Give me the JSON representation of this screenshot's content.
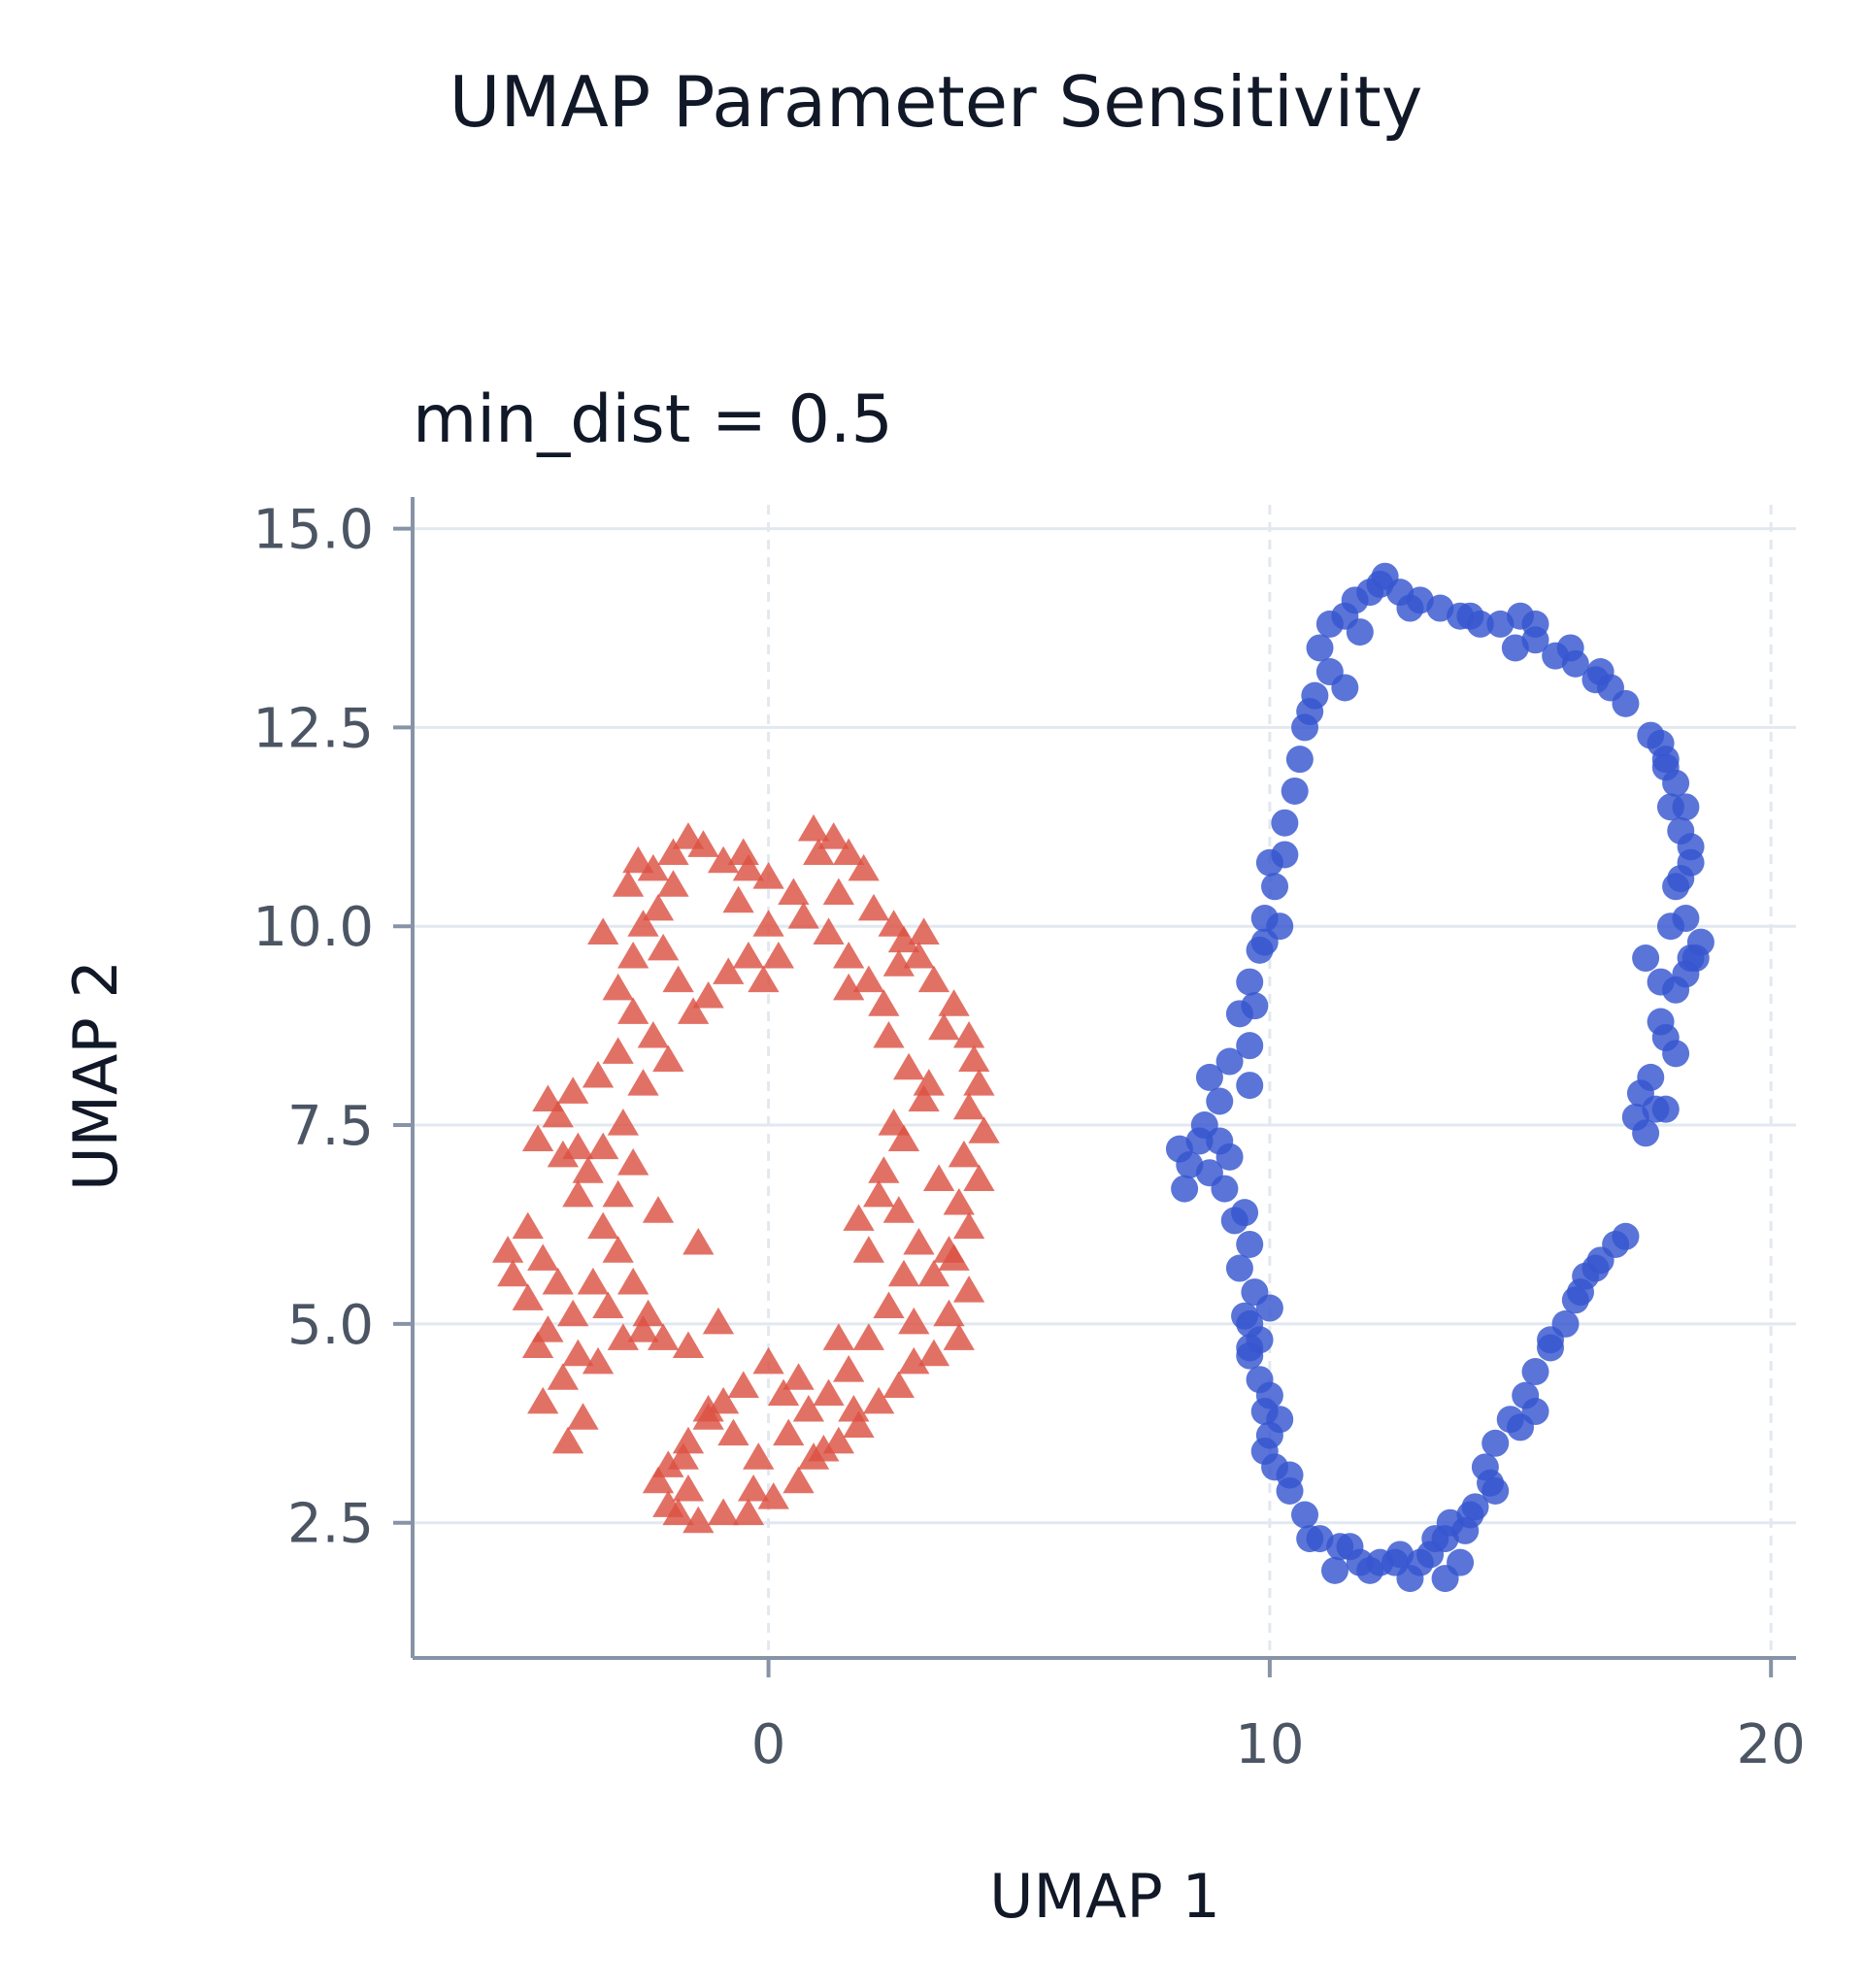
{
  "title": "UMAP Parameter Sensitivity",
  "colors": {
    "series_a": "#dc5243",
    "series_b": "#3656d0"
  },
  "chart_data": {
    "type": "scatter",
    "subtitle": "min_dist = 0.5",
    "xlabel": "UMAP 1",
    "ylabel": "UMAP 2",
    "xlim": [
      -7.1,
      20.5
    ],
    "ylim": [
      0.8,
      15.3
    ],
    "x_ticks": [
      0,
      10,
      20
    ],
    "x_tick_labels": [
      "0",
      "10",
      "20"
    ],
    "y_ticks": [
      2.5,
      5.0,
      7.5,
      10.0,
      12.5,
      15.0
    ],
    "y_tick_labels": [
      "2.5",
      "5.0",
      "7.5",
      "10.0",
      "12.5",
      "15.0"
    ],
    "grid": true,
    "series": [
      {
        "marker": "triangle",
        "color": "#dc5243",
        "points": [
          [
            -1.6,
            11.1
          ],
          [
            -1.3,
            11.0
          ],
          [
            -1.9,
            10.9
          ],
          [
            -2.3,
            10.7
          ],
          [
            -2.6,
            10.8
          ],
          [
            -2.8,
            10.5
          ],
          [
            -0.9,
            10.8
          ],
          [
            -0.4,
            10.7
          ],
          [
            0.0,
            10.6
          ],
          [
            0.5,
            10.4
          ],
          [
            1.0,
            10.9
          ],
          [
            1.3,
            11.1
          ],
          [
            1.6,
            10.9
          ],
          [
            1.9,
            10.7
          ],
          [
            1.4,
            10.4
          ],
          [
            2.1,
            10.2
          ],
          [
            2.5,
            10.0
          ],
          [
            2.7,
            9.8
          ],
          [
            3.0,
            9.6
          ],
          [
            3.3,
            9.3
          ],
          [
            3.7,
            9.0
          ],
          [
            4.0,
            8.6
          ],
          [
            4.1,
            8.3
          ],
          [
            4.2,
            8.0
          ],
          [
            4.0,
            7.7
          ],
          [
            4.3,
            7.4
          ],
          [
            3.9,
            7.1
          ],
          [
            4.2,
            6.8
          ],
          [
            3.8,
            6.5
          ],
          [
            4.0,
            6.2
          ],
          [
            3.7,
            5.8
          ],
          [
            4.0,
            5.4
          ],
          [
            3.6,
            5.1
          ],
          [
            3.8,
            4.8
          ],
          [
            3.3,
            4.6
          ],
          [
            2.9,
            4.5
          ],
          [
            2.6,
            4.2
          ],
          [
            2.2,
            4.0
          ],
          [
            1.8,
            3.7
          ],
          [
            1.4,
            3.5
          ],
          [
            0.9,
            3.3
          ],
          [
            0.6,
            3.0
          ],
          [
            0.1,
            2.8
          ],
          [
            -0.4,
            2.6
          ],
          [
            -0.9,
            2.6
          ],
          [
            -1.4,
            2.5
          ],
          [
            -1.8,
            2.6
          ],
          [
            -1.6,
            2.9
          ],
          [
            -2.0,
            3.2
          ],
          [
            -1.6,
            3.5
          ],
          [
            -1.2,
            3.8
          ],
          [
            -0.9,
            4.0
          ],
          [
            -0.5,
            4.2
          ],
          [
            0.0,
            4.5
          ],
          [
            0.6,
            4.3
          ],
          [
            1.2,
            4.1
          ],
          [
            1.6,
            4.4
          ],
          [
            2.0,
            4.8
          ],
          [
            2.4,
            5.2
          ],
          [
            2.7,
            5.6
          ],
          [
            3.0,
            6.0
          ],
          [
            2.6,
            6.4
          ],
          [
            2.2,
            6.6
          ],
          [
            1.8,
            6.3
          ],
          [
            2.3,
            6.9
          ],
          [
            2.7,
            7.3
          ],
          [
            3.1,
            7.8
          ],
          [
            2.8,
            8.2
          ],
          [
            2.4,
            8.6
          ],
          [
            2.3,
            9.0
          ],
          [
            2.0,
            9.3
          ],
          [
            1.6,
            9.6
          ],
          [
            1.2,
            9.9
          ],
          [
            0.7,
            10.1
          ],
          [
            0.0,
            10.0
          ],
          [
            -0.4,
            9.6
          ],
          [
            -0.1,
            9.3
          ],
          [
            0.2,
            9.6
          ],
          [
            -0.8,
            9.4
          ],
          [
            -1.2,
            9.1
          ],
          [
            -1.5,
            8.9
          ],
          [
            -1.8,
            9.3
          ],
          [
            -2.1,
            9.7
          ],
          [
            -2.5,
            10.0
          ],
          [
            -2.7,
            9.6
          ],
          [
            -3.0,
            9.2
          ],
          [
            -2.7,
            8.9
          ],
          [
            -2.3,
            8.6
          ],
          [
            -2.0,
            8.3
          ],
          [
            -2.5,
            8.0
          ],
          [
            -3.0,
            8.4
          ],
          [
            -3.4,
            8.1
          ],
          [
            -3.9,
            7.9
          ],
          [
            -4.2,
            7.6
          ],
          [
            -4.6,
            7.3
          ],
          [
            -4.1,
            7.1
          ],
          [
            -3.6,
            6.9
          ],
          [
            -3.3,
            7.2
          ],
          [
            -2.9,
            7.5
          ],
          [
            -2.7,
            7.0
          ],
          [
            -3.0,
            6.6
          ],
          [
            -3.3,
            6.2
          ],
          [
            -3.0,
            5.9
          ],
          [
            -2.7,
            5.5
          ],
          [
            -2.4,
            5.1
          ],
          [
            -2.1,
            4.8
          ],
          [
            -1.6,
            4.7
          ],
          [
            -2.5,
            4.9
          ],
          [
            -2.9,
            4.8
          ],
          [
            -3.2,
            5.2
          ],
          [
            -3.5,
            5.5
          ],
          [
            -3.9,
            5.1
          ],
          [
            -4.4,
            4.9
          ],
          [
            -4.8,
            5.3
          ],
          [
            -5.1,
            5.6
          ],
          [
            -5.2,
            5.9
          ],
          [
            -4.8,
            6.2
          ],
          [
            -4.5,
            5.8
          ],
          [
            -4.2,
            5.5
          ],
          [
            -3.8,
            4.6
          ],
          [
            -4.1,
            4.3
          ],
          [
            -4.5,
            4.0
          ],
          [
            -3.7,
            3.8
          ],
          [
            -4.0,
            3.5
          ],
          [
            -4.6,
            4.7
          ],
          [
            -3.4,
            4.5
          ],
          [
            -1.2,
            3.9
          ],
          [
            -0.7,
            3.6
          ],
          [
            -0.2,
            3.3
          ],
          [
            0.4,
            3.6
          ],
          [
            0.8,
            3.9
          ],
          [
            1.1,
            3.4
          ],
          [
            -2.2,
            3.0
          ],
          [
            -2.0,
            2.7
          ],
          [
            -0.6,
            10.3
          ],
          [
            1.6,
            9.2
          ],
          [
            3.5,
            8.7
          ],
          [
            3.4,
            6.8
          ],
          [
            2.0,
            5.9
          ],
          [
            2.9,
            5.0
          ],
          [
            1.4,
            4.8
          ],
          [
            -1.0,
            5.0
          ],
          [
            -1.4,
            6.0
          ],
          [
            -2.2,
            6.4
          ],
          [
            -3.8,
            6.6
          ],
          [
            -4.4,
            7.8
          ],
          [
            -2.2,
            10.2
          ],
          [
            0.9,
            11.2
          ],
          [
            3.2,
            8.0
          ],
          [
            2.5,
            7.5
          ],
          [
            3.6,
            5.9
          ],
          [
            0.3,
            4.1
          ],
          [
            -1.7,
            3.3
          ],
          [
            -0.3,
            2.9
          ],
          [
            1.7,
            3.9
          ],
          [
            3.3,
            5.6
          ],
          [
            3.1,
            9.9
          ],
          [
            2.6,
            9.5
          ],
          [
            -3.3,
            9.9
          ],
          [
            -3.8,
            7.2
          ],
          [
            -1.9,
            10.5
          ],
          [
            -0.5,
            10.9
          ]
        ]
      },
      {
        "marker": "circle",
        "color": "#3656d0",
        "points": [
          [
            12.3,
            14.4
          ],
          [
            12.0,
            14.2
          ],
          [
            11.7,
            14.1
          ],
          [
            11.5,
            13.9
          ],
          [
            11.2,
            13.8
          ],
          [
            11.0,
            13.5
          ],
          [
            12.6,
            14.2
          ],
          [
            13.0,
            14.1
          ],
          [
            13.4,
            14.0
          ],
          [
            13.8,
            13.9
          ],
          [
            14.2,
            13.8
          ],
          [
            14.6,
            13.8
          ],
          [
            15.0,
            13.9
          ],
          [
            15.3,
            13.6
          ],
          [
            15.7,
            13.4
          ],
          [
            16.1,
            13.3
          ],
          [
            16.5,
            13.1
          ],
          [
            16.8,
            13.0
          ],
          [
            17.1,
            12.8
          ],
          [
            17.6,
            12.4
          ],
          [
            17.9,
            12.1
          ],
          [
            18.1,
            11.8
          ],
          [
            18.3,
            11.5
          ],
          [
            18.2,
            11.2
          ],
          [
            18.4,
            10.8
          ],
          [
            18.1,
            10.5
          ],
          [
            18.3,
            10.1
          ],
          [
            18.6,
            9.8
          ],
          [
            18.3,
            9.4
          ],
          [
            17.8,
            9.3
          ],
          [
            17.5,
            9.6
          ],
          [
            17.8,
            8.8
          ],
          [
            18.1,
            8.4
          ],
          [
            17.6,
            8.1
          ],
          [
            17.9,
            7.7
          ],
          [
            17.5,
            7.4
          ],
          [
            17.3,
            7.6
          ],
          [
            16.9,
            6.0
          ],
          [
            16.6,
            5.8
          ],
          [
            16.3,
            5.6
          ],
          [
            16.1,
            5.3
          ],
          [
            15.9,
            5.0
          ],
          [
            15.6,
            4.7
          ],
          [
            15.3,
            4.4
          ],
          [
            15.1,
            4.1
          ],
          [
            14.8,
            3.8
          ],
          [
            14.5,
            3.5
          ],
          [
            14.3,
            3.2
          ],
          [
            14.5,
            2.9
          ],
          [
            14.1,
            2.7
          ],
          [
            13.9,
            2.4
          ],
          [
            13.5,
            2.3
          ],
          [
            13.2,
            2.1
          ],
          [
            13.5,
            1.8
          ],
          [
            13.0,
            2.0
          ],
          [
            12.6,
            2.1
          ],
          [
            12.2,
            2.0
          ],
          [
            11.8,
            2.0
          ],
          [
            11.4,
            2.2
          ],
          [
            11.0,
            2.3
          ],
          [
            10.7,
            2.6
          ],
          [
            10.4,
            2.9
          ],
          [
            10.1,
            3.2
          ],
          [
            10.0,
            3.6
          ],
          [
            9.9,
            3.9
          ],
          [
            9.8,
            4.3
          ],
          [
            9.6,
            4.7
          ],
          [
            9.5,
            5.1
          ],
          [
            9.7,
            5.4
          ],
          [
            9.4,
            5.7
          ],
          [
            9.6,
            6.0
          ],
          [
            9.3,
            6.3
          ],
          [
            9.1,
            6.7
          ],
          [
            8.8,
            6.9
          ],
          [
            8.4,
            7.0
          ],
          [
            8.2,
            7.2
          ],
          [
            8.7,
            7.5
          ],
          [
            9.0,
            7.8
          ],
          [
            8.8,
            8.1
          ],
          [
            9.2,
            8.3
          ],
          [
            9.6,
            8.5
          ],
          [
            9.4,
            8.9
          ],
          [
            9.6,
            9.3
          ],
          [
            9.8,
            9.7
          ],
          [
            9.9,
            10.1
          ],
          [
            10.1,
            10.5
          ],
          [
            10.3,
            10.9
          ],
          [
            10.3,
            11.3
          ],
          [
            10.5,
            11.7
          ],
          [
            10.6,
            12.1
          ],
          [
            10.7,
            12.5
          ],
          [
            10.9,
            12.9
          ],
          [
            11.2,
            13.2
          ],
          [
            10.8,
            12.7
          ],
          [
            11.5,
            13.0
          ],
          [
            10.0,
            10.8
          ],
          [
            9.7,
            9.0
          ],
          [
            9.2,
            7.1
          ],
          [
            9.5,
            6.4
          ],
          [
            10.0,
            5.2
          ],
          [
            9.6,
            4.6
          ],
          [
            10.0,
            4.1
          ],
          [
            9.9,
            3.4
          ],
          [
            10.4,
            3.1
          ],
          [
            10.8,
            2.3
          ],
          [
            11.3,
            1.9
          ],
          [
            12.0,
            1.9
          ],
          [
            12.8,
            1.8
          ],
          [
            13.3,
            2.3
          ],
          [
            13.8,
            2.0
          ],
          [
            14.0,
            2.6
          ],
          [
            15.0,
            3.7
          ],
          [
            15.3,
            3.9
          ],
          [
            16.5,
            5.7
          ],
          [
            17.1,
            6.1
          ],
          [
            17.7,
            7.7
          ],
          [
            17.9,
            8.6
          ],
          [
            18.5,
            9.6
          ],
          [
            18.0,
            10.0
          ],
          [
            18.4,
            11.0
          ],
          [
            18.0,
            11.5
          ],
          [
            17.9,
            12.0
          ],
          [
            16.6,
            13.2
          ],
          [
            15.3,
            13.8
          ],
          [
            14.0,
            13.9
          ],
          [
            12.8,
            14.0
          ],
          [
            12.2,
            14.3
          ],
          [
            11.8,
            13.7
          ],
          [
            10.2,
            10.0
          ],
          [
            9.9,
            9.8
          ],
          [
            9.6,
            8.0
          ],
          [
            8.6,
            7.3
          ],
          [
            8.3,
            6.7
          ],
          [
            9.0,
            7.3
          ],
          [
            9.6,
            5.0
          ],
          [
            9.8,
            4.8
          ],
          [
            10.2,
            3.8
          ],
          [
            11.6,
            2.2
          ],
          [
            12.5,
            2.0
          ],
          [
            13.6,
            2.5
          ],
          [
            14.4,
            3.0
          ],
          [
            15.6,
            4.8
          ],
          [
            16.2,
            5.4
          ],
          [
            17.4,
            7.9
          ],
          [
            18.1,
            9.2
          ],
          [
            18.4,
            9.6
          ],
          [
            18.2,
            10.6
          ],
          [
            17.8,
            12.3
          ],
          [
            16.0,
            13.5
          ],
          [
            14.9,
            13.5
          ]
        ]
      }
    ]
  }
}
